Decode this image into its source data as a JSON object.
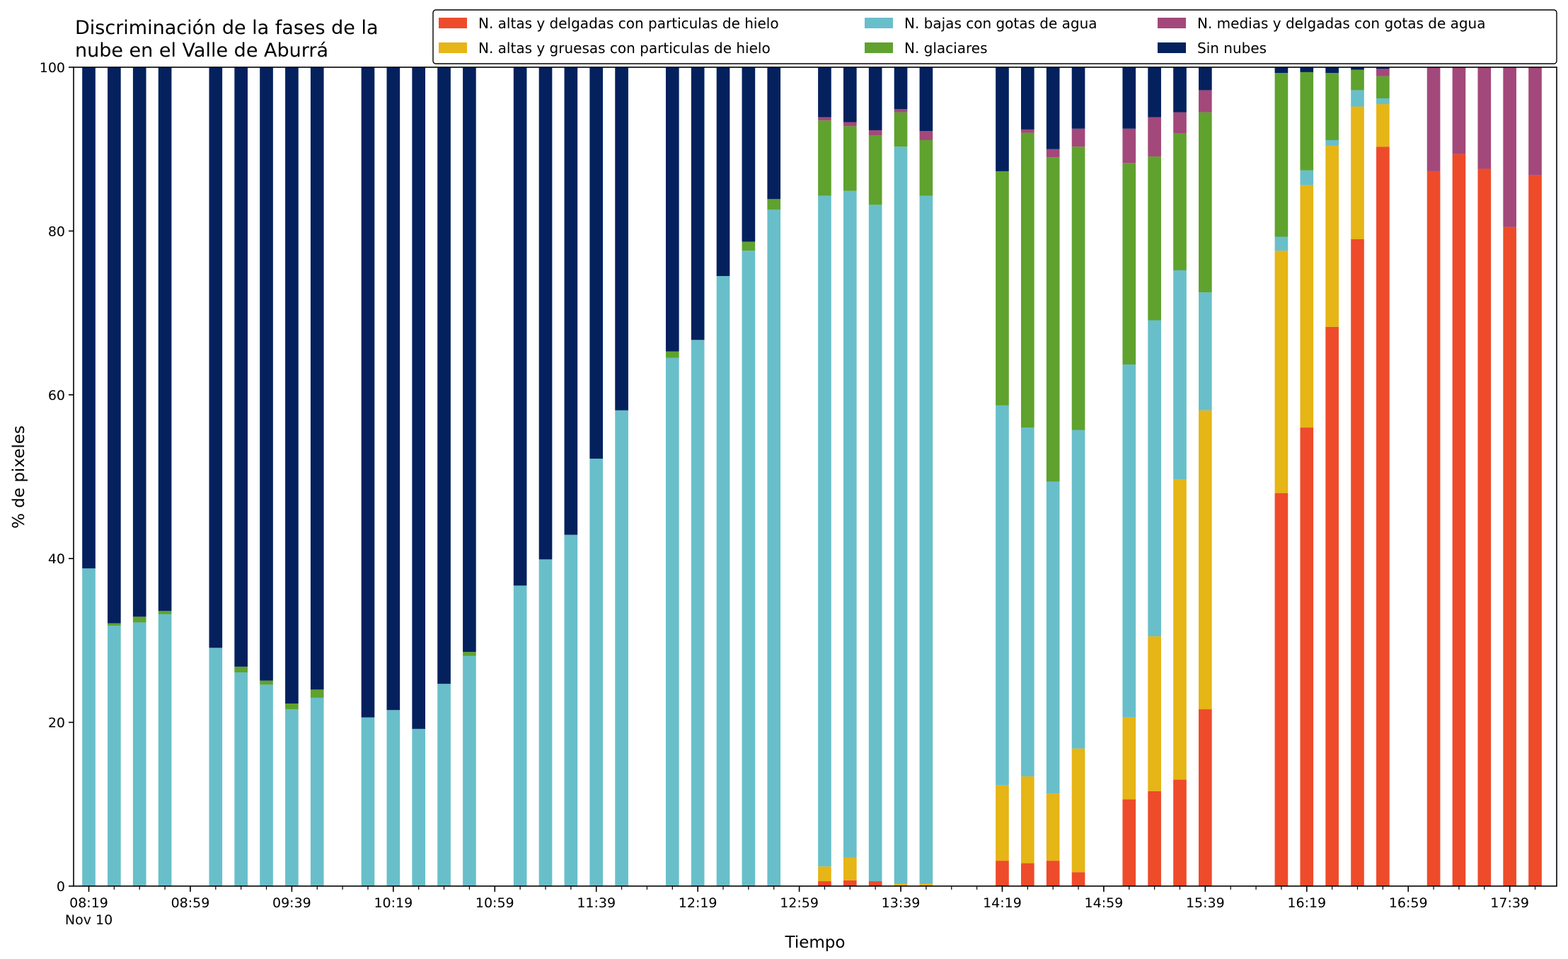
{
  "chart_data": {
    "type": "bar",
    "stacked": true,
    "title": "Discriminación de la fases de la\nnube en el Valle de Aburrá",
    "xlabel": "Tiempo",
    "ylabel": "% de pixeles",
    "ylim": [
      0,
      100
    ],
    "y_ticks": [
      0,
      20,
      40,
      60,
      80,
      100
    ],
    "x_tick_labels": [
      "08:19",
      "08:59",
      "09:39",
      "10:19",
      "10:59",
      "11:39",
      "12:19",
      "12:59",
      "13:39",
      "14:19",
      "14:59",
      "15:39",
      "16:19",
      "16:59",
      "17:39"
    ],
    "x_date_label": "Nov 10",
    "grid": false,
    "legend_position": "top-right",
    "legend_columns": 3,
    "categories": [
      "08:19",
      "08:29",
      "08:39",
      "08:49",
      "08:59",
      "09:09",
      "09:19",
      "09:29",
      "09:39",
      "09:49",
      "09:59",
      "10:09",
      "10:19",
      "10:29",
      "10:39",
      "10:49",
      "10:59",
      "11:09",
      "11:19",
      "11:29",
      "11:39",
      "11:49",
      "11:59",
      "12:09",
      "12:19",
      "12:29",
      "12:39",
      "12:49",
      "12:59",
      "13:09",
      "13:19",
      "13:29",
      "13:39",
      "13:49",
      "13:59",
      "14:09",
      "14:19",
      "14:29",
      "14:39",
      "14:49",
      "14:59",
      "15:09",
      "15:19",
      "15:29",
      "15:39",
      "15:49",
      "15:59",
      "16:09",
      "16:19",
      "16:29",
      "16:39",
      "16:49",
      "16:59",
      "17:09",
      "17:19",
      "17:29",
      "17:39",
      "17:49"
    ],
    "series": [
      {
        "name": "N. altas y delgadas con particulas de hielo",
        "color": "#EE4B2B",
        "values": [
          0,
          0,
          0,
          0,
          null,
          0,
          0,
          0,
          0,
          0,
          null,
          0,
          0,
          0,
          0,
          0,
          null,
          0,
          0,
          0,
          0,
          0,
          null,
          0,
          0,
          0,
          0,
          0,
          null,
          0.6,
          0.7,
          0.6,
          0,
          0,
          null,
          null,
          3.1,
          2.8,
          3.1,
          1.7,
          null,
          10.6,
          11.6,
          13.0,
          21.6,
          null,
          null,
          48.0,
          56.0,
          68.3,
          79.0,
          90.3,
          null,
          87.3,
          89.4,
          87.6,
          80.5,
          86.8
        ]
      },
      {
        "name": "N. altas y gruesas con particulas de hielo",
        "color": "#E6B516",
        "values": [
          0,
          0,
          0,
          0,
          null,
          0,
          0,
          0,
          0,
          0,
          null,
          0,
          0,
          0,
          0,
          0,
          null,
          0,
          0,
          0,
          0,
          0,
          null,
          0,
          0,
          0,
          0,
          0,
          null,
          1.8,
          2.8,
          0,
          0.3,
          0.3,
          null,
          null,
          9.2,
          10.6,
          8.2,
          15.1,
          null,
          10.0,
          18.9,
          36.7,
          36.5,
          null,
          null,
          29.6,
          29.6,
          22.1,
          16.2,
          5.2,
          null,
          0,
          0,
          0,
          0,
          0
        ]
      },
      {
        "name": "N. bajas con gotas de agua",
        "color": "#68BFCA",
        "values": [
          38.8,
          31.8,
          32.2,
          33.2,
          null,
          29.1,
          26.1,
          24.6,
          21.6,
          23.0,
          null,
          20.6,
          21.5,
          19.2,
          24.7,
          28.1,
          null,
          36.7,
          39.9,
          42.9,
          52.2,
          58.1,
          null,
          64.5,
          66.7,
          74.5,
          77.6,
          82.6,
          null,
          81.9,
          81.4,
          82.6,
          90.0,
          84.0,
          null,
          null,
          46.4,
          42.6,
          38.1,
          38.9,
          null,
          43.1,
          38.6,
          25.5,
          14.4,
          null,
          null,
          1.7,
          1.8,
          0.7,
          2.0,
          0.7,
          null,
          0,
          0,
          0,
          0,
          0
        ]
      },
      {
        "name": "N. glaciares",
        "color": "#5FA22E",
        "values": [
          0,
          0.3,
          0.7,
          0.4,
          null,
          0,
          0.7,
          0.5,
          0.7,
          1.0,
          null,
          0,
          0,
          0,
          0,
          0.5,
          null,
          0,
          0,
          0,
          0,
          0,
          null,
          0.8,
          0,
          0,
          1.1,
          1.3,
          null,
          9.2,
          7.9,
          8.5,
          4.2,
          6.8,
          null,
          null,
          28.6,
          36.0,
          39.6,
          34.6,
          null,
          24.6,
          20.0,
          16.7,
          22.0,
          null,
          null,
          20.0,
          12.0,
          8.2,
          2.5,
          2.7,
          null,
          0,
          0,
          0,
          0,
          0
        ]
      },
      {
        "name": "N. medias y delgadas con gotas de agua",
        "color": "#A3487A",
        "values": [
          0,
          0,
          0,
          0,
          null,
          0,
          0,
          0,
          0,
          0,
          null,
          0,
          0,
          0,
          0,
          0,
          null,
          0,
          0,
          0,
          0,
          0,
          null,
          0,
          0,
          0,
          0,
          0,
          null,
          0.4,
          0.5,
          0.6,
          0.4,
          1.1,
          null,
          null,
          0,
          0.4,
          1.0,
          2.2,
          null,
          4.2,
          4.8,
          2.6,
          2.7,
          null,
          null,
          0,
          0,
          0,
          0,
          0.9,
          null,
          12.7,
          10.6,
          12.4,
          19.5,
          13.2
        ]
      },
      {
        "name": "Sin nubes",
        "color": "#04215E",
        "values": [
          61.2,
          67.9,
          67.1,
          66.4,
          null,
          70.9,
          73.2,
          74.9,
          77.7,
          76.0,
          null,
          79.4,
          78.5,
          80.8,
          75.3,
          71.4,
          null,
          63.3,
          60.1,
          57.1,
          47.8,
          41.9,
          null,
          34.7,
          33.3,
          25.5,
          21.3,
          16.1,
          null,
          6.1,
          6.7,
          7.7,
          5.1,
          7.8,
          null,
          null,
          12.7,
          7.6,
          10.0,
          7.5,
          null,
          7.5,
          6.1,
          5.5,
          2.8,
          null,
          null,
          0.7,
          0.6,
          0.7,
          0.3,
          0.2,
          null,
          0,
          0,
          0,
          0,
          0
        ]
      }
    ]
  }
}
